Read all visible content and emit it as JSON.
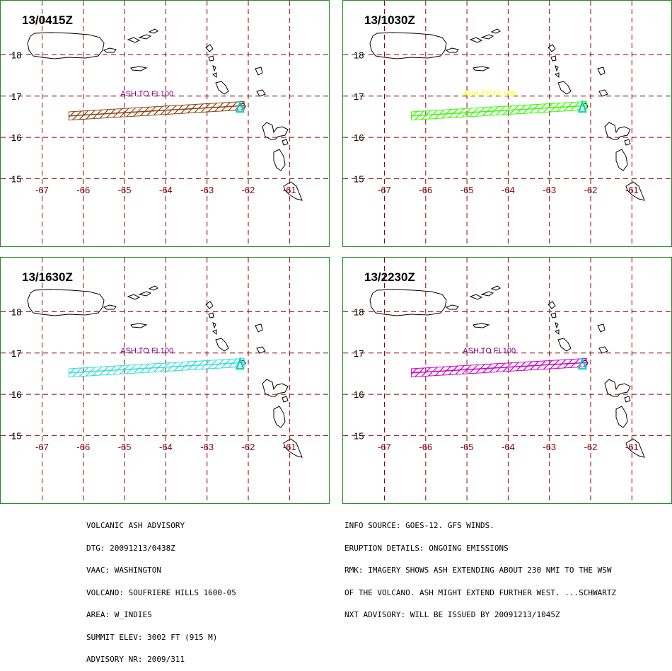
{
  "panels": [
    {
      "time": "13/0415Z",
      "label": "ASH TO FL100",
      "color": "#8b4513",
      "label_color": "#800080",
      "x_start": -66.35
    },
    {
      "time": "13/1030Z",
      "label": "ASH TO FL100",
      "color": "#33ff00",
      "label_color": "#ffff00",
      "x_start": -66.35
    },
    {
      "time": "13/1630Z",
      "label": "ASH TO FL100",
      "color": "#33dddd",
      "label_color": "#800080",
      "x_start": -66.35
    },
    {
      "time": "13/2230Z",
      "label": "ASH TO FL100",
      "color": "#cc00cc",
      "label_color": "#800080",
      "x_start": -66.35
    }
  ],
  "axes": {
    "lon_ticks": [
      "-67",
      "-66",
      "-65",
      "-64",
      "-63",
      "-62",
      "-61"
    ],
    "lat_ticks": [
      "18",
      "17",
      "16",
      "15"
    ],
    "grid_color": "#8b0000"
  },
  "advisory_left": [
    "VOLCANIC ASH ADVISORY",
    "DTG: 20091213/0438Z",
    "VAAC: WASHINGTON",
    "VOLCANO: SOUFRIERE HILLS 1600-05",
    "AREA: W_INDIES",
    "SUMMIT ELEV: 3002 FT (915 M)",
    "ADVISORY NR: 2009/311"
  ],
  "advisory_right": [
    "INFO SOURCE: GOES-12. GFS WINDS.",
    "ERUPTION DETAILS: ONGOING EMISSIONS",
    "RMK: IMAGERY SHOWS ASH EXTENDING ABOUT 230 NMI TO THE WSW",
    "OF THE VOLCANO. ASH MIGHT EXTEND FURTHER WEST. ...SCHWARTZ",
    "NXT ADVISORY: WILL BE ISSUED BY 20091213/1045Z"
  ]
}
